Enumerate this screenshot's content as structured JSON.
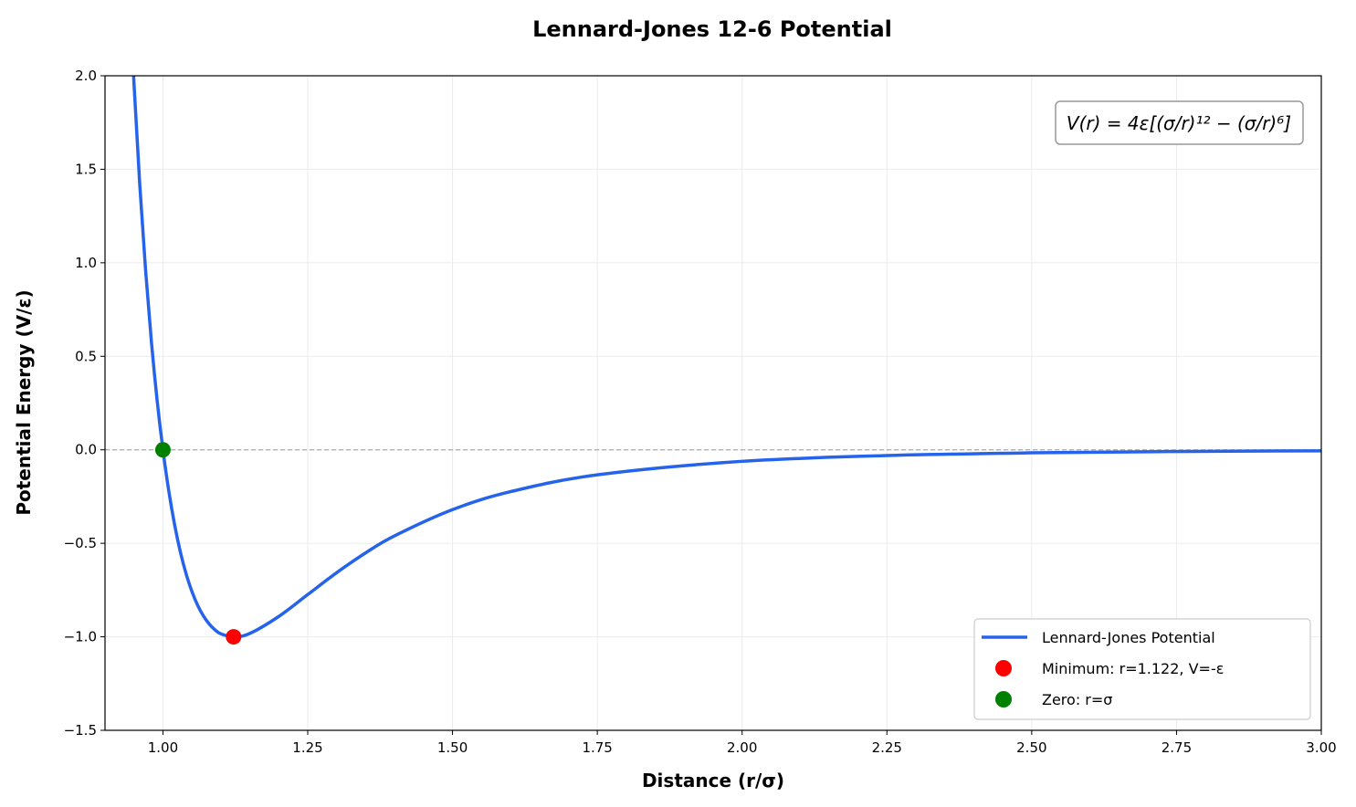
{
  "chart_data": {
    "type": "line",
    "title": "Lennard-Jones 12-6 Potential",
    "xlabel": "Distance (r/σ)",
    "ylabel": "Potential Energy (V/ε)",
    "xlim": [
      0.9,
      3.0
    ],
    "ylim": [
      -1.5,
      2.0
    ],
    "xticks": [
      "1.00",
      "1.25",
      "1.50",
      "1.75",
      "2.00",
      "2.25",
      "2.50",
      "2.75",
      "3.00"
    ],
    "yticks": [
      "−1.5",
      "−1.0",
      "−0.5",
      "0.0",
      "0.5",
      "1.0",
      "1.5",
      "2.0"
    ],
    "grid": true,
    "legend_placement": "lower-right",
    "annotation": "V(r) = 4ε[(σ/r)¹² − (σ/r)⁶]",
    "reference_line": {
      "y": 0,
      "style": "dashed",
      "color": "#aaaaaa"
    },
    "series": [
      {
        "name": "Lennard-Jones Potential",
        "color": "#2563eb",
        "x": [
          0.94,
          0.95,
          0.96,
          0.97,
          0.98,
          0.99,
          1.0,
          1.01,
          1.02,
          1.03,
          1.04,
          1.05,
          1.06,
          1.07,
          1.08,
          1.09,
          1.1,
          1.122,
          1.15,
          1.2,
          1.25,
          1.3,
          1.35,
          1.4,
          1.5,
          1.6,
          1.75,
          2.0,
          2.25,
          2.5,
          2.75,
          3.0
        ],
        "y": [
          2.607,
          1.961,
          1.418,
          0.963,
          0.582,
          0.264,
          0.0,
          -0.218,
          -0.398,
          -0.545,
          -0.663,
          -0.757,
          -0.832,
          -0.889,
          -0.932,
          -0.963,
          -0.984,
          -1.0,
          -0.982,
          -0.891,
          -0.774,
          -0.657,
          -0.551,
          -0.46,
          -0.32,
          -0.224,
          -0.134,
          -0.0615,
          -0.0307,
          -0.0163,
          -0.00925,
          -0.00548
        ]
      },
      {
        "name": "Minimum: r=1.122, V=-ε",
        "color": "#ff0000",
        "type": "scatter",
        "x": [
          1.122
        ],
        "y": [
          -1.0
        ]
      },
      {
        "name": "Zero: r=σ",
        "color": "#008000",
        "type": "scatter",
        "x": [
          1.0
        ],
        "y": [
          0.0
        ]
      }
    ]
  }
}
